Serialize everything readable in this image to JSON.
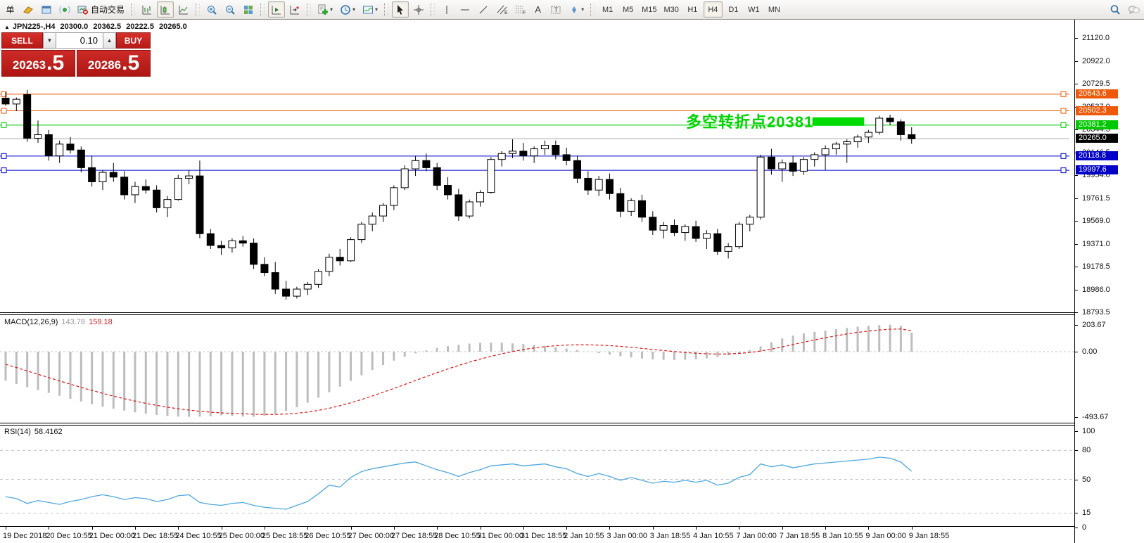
{
  "toolbar": {
    "new_order_label": "单",
    "autotrade_label": "自动交易",
    "timeframes": [
      "M1",
      "M5",
      "M15",
      "M30",
      "H1",
      "H4",
      "D1",
      "W1",
      "MN"
    ],
    "active_timeframe": "H4",
    "channel_letter": "E",
    "fibo_letter": "F",
    "text_tool_label": "A",
    "label_tool_label": "T"
  },
  "chart_header": {
    "symbol_period": "JPN225-,H4",
    "open": "20300.0",
    "high": "20362.5",
    "low": "20222.5",
    "close": "20265.0"
  },
  "trade_panel": {
    "sell_label": "SELL",
    "buy_label": "BUY",
    "volume": "0.10",
    "sell_price": "20263.5",
    "buy_price": "20286.5",
    "sell_main": "20263",
    "sell_big": ".5",
    "buy_main": "20286",
    "buy_big": ".5"
  },
  "indicators": {
    "macd_name": "MACD(12,26,9)",
    "macd_value": "143.78",
    "macd_signal_value": "159.18",
    "rsi_name": "RSI(14)",
    "rsi_value": "58.4162"
  },
  "colors": {
    "sell_buy_red": "#c5211e",
    "resistance_orange": "#ee5a0a",
    "pivot_green": "#00c800",
    "highlight_green": "#00dc00",
    "support_blue": "#0000c8",
    "bid_gray": "#aaaaaa",
    "bid_label_bg": "#000000",
    "macd_histogram": "#bdbdbd",
    "macd_signal": "#e01010",
    "rsi_line": "#4fa8de"
  },
  "chart_data": [
    {
      "type": "candlestick",
      "title": "JPN225-,H4",
      "x_labels": [
        "19 Dec 2018",
        "20 Dec 10:55",
        "21 Dec 00:00",
        "21 Dec 18:55",
        "24 Dec 10:55",
        "25 Dec 00:00",
        "25 Dec 18:55",
        "26 Dec 10:55",
        "27 Dec 00:00",
        "27 Dec 18:55",
        "28 Dec 10:55",
        "31 Dec 00:00",
        "31 Dec 18:55",
        "2 Jan 10:55",
        "3 Jan 00:00",
        "3 Jan 18:55",
        "4 Jan 10:55",
        "7 Jan 00:00",
        "7 Jan 18:55",
        "8 Jan 10:55",
        "9 Jan 00:00",
        "9 Jan 18:55"
      ],
      "candles_per_label": 4,
      "ylim": [
        18793.5,
        21120.0
      ],
      "y_ticks": [
        21120.0,
        20922.0,
        20729.5,
        20537.0,
        20344.5,
        20146.5,
        19954.0,
        19761.5,
        19569.0,
        19371.0,
        19178.5,
        18986.0,
        18793.5
      ],
      "ohlc": [
        [
          20610,
          20660,
          20545,
          20560
        ],
        [
          20560,
          20615,
          20500,
          20600
        ],
        [
          20640,
          20680,
          20240,
          20270
        ],
        [
          20270,
          20420,
          20230,
          20300
        ],
        [
          20300,
          20340,
          20080,
          20120
        ],
        [
          20120,
          20250,
          20060,
          20220
        ],
        [
          20220,
          20280,
          20140,
          20170
        ],
        [
          20170,
          20200,
          19980,
          20020
        ],
        [
          20020,
          20120,
          19860,
          19900
        ],
        [
          19900,
          20000,
          19830,
          19980
        ],
        [
          19980,
          20060,
          19900,
          19940
        ],
        [
          19940,
          19990,
          19750,
          19790
        ],
        [
          19790,
          19900,
          19720,
          19860
        ],
        [
          19860,
          19920,
          19800,
          19830
        ],
        [
          19830,
          19870,
          19640,
          19680
        ],
        [
          19680,
          19780,
          19600,
          19750
        ],
        [
          19750,
          19960,
          19740,
          19930
        ],
        [
          19930,
          20000,
          19880,
          19950
        ],
        [
          19950,
          20080,
          19420,
          19460
        ],
        [
          19460,
          19500,
          19330,
          19360
        ],
        [
          19360,
          19400,
          19280,
          19340
        ],
        [
          19340,
          19420,
          19300,
          19400
        ],
        [
          19400,
          19440,
          19350,
          19380
        ],
        [
          19380,
          19420,
          19160,
          19200
        ],
        [
          19200,
          19260,
          19100,
          19130
        ],
        [
          19130,
          19220,
          18950,
          18990
        ],
        [
          18990,
          19060,
          18900,
          18930
        ],
        [
          18930,
          19010,
          18910,
          18990
        ],
        [
          18990,
          19050,
          18940,
          19030
        ],
        [
          19030,
          19160,
          19000,
          19140
        ],
        [
          19140,
          19290,
          19100,
          19260
        ],
        [
          19260,
          19330,
          19190,
          19230
        ],
        [
          19230,
          19430,
          19220,
          19410
        ],
        [
          19410,
          19560,
          19380,
          19540
        ],
        [
          19540,
          19640,
          19480,
          19610
        ],
        [
          19610,
          19720,
          19560,
          19700
        ],
        [
          19700,
          19870,
          19660,
          19850
        ],
        [
          19850,
          20040,
          19830,
          20010
        ],
        [
          20010,
          20120,
          19950,
          20080
        ],
        [
          20080,
          20140,
          19990,
          20020
        ],
        [
          20020,
          20060,
          19830,
          19870
        ],
        [
          19870,
          19940,
          19750,
          19790
        ],
        [
          19790,
          19840,
          19570,
          19610
        ],
        [
          19610,
          19750,
          19590,
          19730
        ],
        [
          19730,
          19830,
          19690,
          19810
        ],
        [
          19810,
          20110,
          19800,
          20090
        ],
        [
          20090,
          20160,
          20030,
          20140
        ],
        [
          20140,
          20260,
          20100,
          20160
        ],
        [
          20160,
          20230,
          20080,
          20120
        ],
        [
          20120,
          20200,
          20060,
          20180
        ],
        [
          20180,
          20250,
          20130,
          20210
        ],
        [
          20210,
          20250,
          20090,
          20130
        ],
        [
          20130,
          20190,
          20040,
          20080
        ],
        [
          20080,
          20120,
          19890,
          19930
        ],
        [
          19930,
          19990,
          19790,
          19830
        ],
        [
          19830,
          19950,
          19780,
          19920
        ],
        [
          19920,
          19970,
          19750,
          19800
        ],
        [
          19800,
          19850,
          19600,
          19650
        ],
        [
          19650,
          19760,
          19610,
          19740
        ],
        [
          19740,
          19790,
          19560,
          19600
        ],
        [
          19600,
          19650,
          19450,
          19490
        ],
        [
          19490,
          19560,
          19420,
          19530
        ],
        [
          19530,
          19580,
          19440,
          19470
        ],
        [
          19470,
          19540,
          19400,
          19520
        ],
        [
          19520,
          19570,
          19390,
          19420
        ],
        [
          19420,
          19490,
          19330,
          19460
        ],
        [
          19460,
          19500,
          19280,
          19310
        ],
        [
          19310,
          19380,
          19250,
          19350
        ],
        [
          19350,
          19560,
          19330,
          19540
        ],
        [
          19540,
          19620,
          19480,
          19600
        ],
        [
          19600,
          20130,
          19580,
          20110
        ],
        [
          20110,
          20180,
          19960,
          20010
        ],
        [
          20010,
          20090,
          19900,
          20060
        ],
        [
          20060,
          20120,
          19950,
          19990
        ],
        [
          19990,
          20110,
          19960,
          20090
        ],
        [
          20090,
          20150,
          20030,
          20130
        ],
        [
          20130,
          20210,
          20000,
          20180
        ],
        [
          20180,
          20240,
          20130,
          20220
        ],
        [
          20220,
          20260,
          20060,
          20240
        ],
        [
          20240,
          20300,
          20190,
          20280
        ],
        [
          20280,
          20340,
          20230,
          20320
        ],
        [
          20320,
          20460,
          20300,
          20440
        ],
        [
          20440,
          20470,
          20380,
          20410
        ],
        [
          20410,
          20430,
          20250,
          20300
        ],
        [
          20300,
          20362.5,
          20222.5,
          20265
        ]
      ],
      "hlines": [
        {
          "value": 20643.6,
          "label": "20643.6",
          "color": "#ee5a0a",
          "handles": true
        },
        {
          "value": 20502.3,
          "label": "20502.3",
          "color": "#ee5a0a",
          "handles": true
        },
        {
          "value": 20381.2,
          "label": "20381.2",
          "color": "#00c800",
          "handles": true
        },
        {
          "value": 20265.0,
          "label": "20265.0",
          "color": "#aaaaaa",
          "label_bg": "#000000",
          "handles": false
        },
        {
          "value": 20118.8,
          "label": "20118.8",
          "color": "#0000c8",
          "handles": true
        },
        {
          "value": 19997.6,
          "label": "19997.6",
          "color": "#0000c8",
          "handles": true
        }
      ],
      "highlight": {
        "start_index": 74.8,
        "end_index": 79.6,
        "price": 20381.2,
        "color": "#00dc00"
      },
      "annotation": {
        "text": "多空转折点20381",
        "color": "#00d400",
        "value": 20381
      }
    },
    {
      "type": "bar",
      "name": "MACD",
      "params": "12,26,9",
      "current_value": 143.78,
      "current_signal": 159.18,
      "scale_labels": [
        {
          "v": 203.67,
          "t": "203.67"
        },
        {
          "v": 0,
          "t": "0.00"
        },
        {
          "v": -493.67,
          "t": "-493.67"
        }
      ],
      "ylim": [
        -493.67,
        203.67
      ],
      "values": [
        -220,
        -245,
        -268,
        -290,
        -312,
        -334,
        -356,
        -377,
        -397,
        -415,
        -431,
        -446,
        -459,
        -470,
        -479,
        -486,
        -491,
        -493,
        -492,
        -488,
        -482,
        -486,
        -491,
        -493,
        -485,
        -470,
        -448,
        -420,
        -386,
        -348,
        -307,
        -264,
        -221,
        -179,
        -139,
        -102,
        -68,
        -38,
        -12,
        10,
        28,
        42,
        53,
        61,
        66,
        68,
        67,
        63,
        58,
        51,
        43,
        34,
        24,
        13,
        1,
        -11,
        -23,
        -34,
        -44,
        -52,
        -58,
        -62,
        -63,
        -61,
        -57,
        -50,
        -40,
        -27,
        -10,
        12,
        40,
        72,
        100,
        122,
        138,
        150,
        160,
        170,
        180,
        189,
        196,
        201,
        203.67,
        196,
        143.78
      ],
      "signal": [
        -95,
        -120,
        -146,
        -171,
        -196,
        -221,
        -246,
        -270,
        -293,
        -315,
        -336,
        -356,
        -374,
        -391,
        -406,
        -420,
        -432,
        -442,
        -451,
        -458,
        -463,
        -467,
        -470,
        -473,
        -475,
        -475,
        -472,
        -466,
        -457,
        -444,
        -428,
        -409,
        -387,
        -362,
        -335,
        -307,
        -278,
        -248,
        -218,
        -188,
        -159,
        -131,
        -104,
        -79,
        -56,
        -35,
        -16,
        1,
        16,
        28,
        38,
        45,
        50,
        52,
        52,
        50,
        46,
        40,
        33,
        25,
        17,
        9,
        1,
        -6,
        -12,
        -16,
        -18,
        -17,
        -13,
        -6,
        5,
        19,
        36,
        54,
        72,
        89,
        105,
        120,
        134,
        146,
        156,
        164,
        170,
        172,
        159.18
      ]
    },
    {
      "type": "line",
      "name": "RSI",
      "params": "14",
      "current_value": 58.4162,
      "ylim": [
        0,
        100
      ],
      "levels": [
        80,
        50,
        15
      ],
      "scale_labels": [
        {
          "v": 100,
          "t": "100"
        },
        {
          "v": 80,
          "t": "80"
        },
        {
          "v": 50,
          "t": "50"
        },
        {
          "v": 15,
          "t": "15"
        },
        {
          "v": 0,
          "t": "0"
        }
      ],
      "values": [
        32,
        30,
        25,
        28,
        26,
        24,
        27,
        29,
        32,
        34,
        32,
        29,
        31,
        30,
        27,
        29,
        33,
        34,
        26,
        24,
        23,
        25,
        26,
        23,
        21,
        20,
        19,
        23,
        27,
        35,
        44,
        42,
        52,
        58,
        61,
        63,
        65,
        67,
        68,
        64,
        60,
        57,
        53,
        57,
        60,
        64,
        65,
        66,
        64,
        65,
        66,
        63,
        61,
        56,
        53,
        56,
        53,
        49,
        52,
        49,
        46,
        48,
        47,
        49,
        47,
        49,
        44,
        46,
        52,
        55,
        66,
        63,
        65,
        62,
        64,
        66,
        67,
        68,
        69,
        70,
        71,
        73,
        72,
        68,
        58.4162
      ]
    }
  ]
}
